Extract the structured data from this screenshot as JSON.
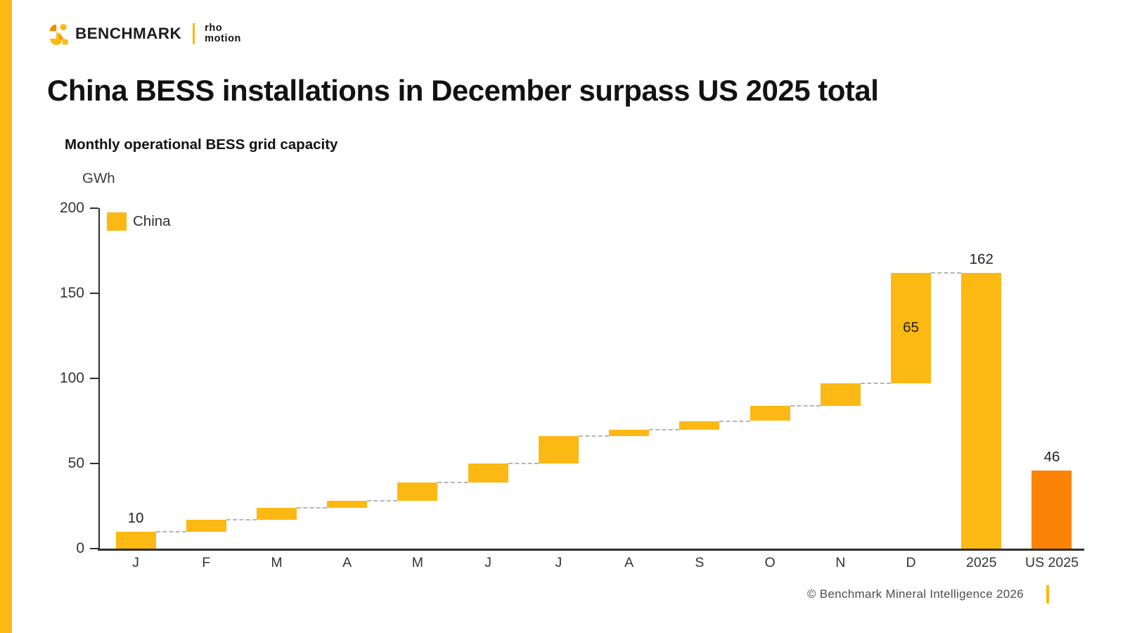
{
  "page": {
    "accent_yellow": "#FCB813",
    "accent_orange": "#FB8306",
    "background": "#ffffff"
  },
  "header": {
    "brand": "BENCHMARK",
    "partner_line1": "rho",
    "partner_line2": "motion"
  },
  "title": "China BESS installations in December surpass US 2025 total",
  "chart_data": {
    "type": "bar",
    "subtype": "waterfall",
    "title": "Monthly operational BESS grid capacity",
    "unit": "GWh",
    "grid": false,
    "legend_position": "top-left",
    "legend": [
      {
        "label": "China",
        "color": "#FCB813"
      }
    ],
    "y_axis": {
      "min": 0,
      "max": 200,
      "ticks": [
        0,
        50,
        100,
        150,
        200
      ]
    },
    "categories": [
      "J",
      "F",
      "M",
      "A",
      "M",
      "J",
      "J",
      "A",
      "S",
      "O",
      "N",
      "D",
      "2025",
      "US 2025"
    ],
    "bars": [
      {
        "category": "J",
        "start": 0,
        "end": 10,
        "annotation": "10",
        "annotation_pos": "above",
        "color": "#FCB813",
        "connector_to_next": true
      },
      {
        "category": "F",
        "start": 10,
        "end": 17,
        "annotation": null,
        "annotation_pos": null,
        "color": "#FCB813",
        "connector_to_next": true
      },
      {
        "category": "M",
        "start": 17,
        "end": 24,
        "annotation": null,
        "annotation_pos": null,
        "color": "#FCB813",
        "connector_to_next": true
      },
      {
        "category": "A",
        "start": 24,
        "end": 28,
        "annotation": null,
        "annotation_pos": null,
        "color": "#FCB813",
        "connector_to_next": true
      },
      {
        "category": "M",
        "start": 28,
        "end": 39,
        "annotation": null,
        "annotation_pos": null,
        "color": "#FCB813",
        "connector_to_next": true
      },
      {
        "category": "J",
        "start": 39,
        "end": 50,
        "annotation": null,
        "annotation_pos": null,
        "color": "#FCB813",
        "connector_to_next": true
      },
      {
        "category": "J",
        "start": 50,
        "end": 66,
        "annotation": null,
        "annotation_pos": null,
        "color": "#FCB813",
        "connector_to_next": true
      },
      {
        "category": "A",
        "start": 66,
        "end": 70,
        "annotation": null,
        "annotation_pos": null,
        "color": "#FCB813",
        "connector_to_next": true
      },
      {
        "category": "S",
        "start": 70,
        "end": 75,
        "annotation": null,
        "annotation_pos": null,
        "color": "#FCB813",
        "connector_to_next": true
      },
      {
        "category": "O",
        "start": 75,
        "end": 84,
        "annotation": null,
        "annotation_pos": null,
        "color": "#FCB813",
        "connector_to_next": true
      },
      {
        "category": "N",
        "start": 84,
        "end": 97,
        "annotation": null,
        "annotation_pos": null,
        "color": "#FCB813",
        "connector_to_next": true
      },
      {
        "category": "D",
        "start": 97,
        "end": 162,
        "annotation": "65",
        "annotation_pos": "inside",
        "color": "#FCB813",
        "connector_to_next": true
      },
      {
        "category": "2025",
        "start": 0,
        "end": 162,
        "annotation": "162",
        "annotation_pos": "above",
        "color": "#FCB813",
        "connector_to_next": false
      },
      {
        "category": "US 2025",
        "start": 0,
        "end": 46,
        "annotation": "46",
        "annotation_pos": "above",
        "color": "#FB8306",
        "connector_to_next": false
      }
    ]
  },
  "footer": {
    "copyright": "© Benchmark Mineral Intelligence 2026"
  }
}
